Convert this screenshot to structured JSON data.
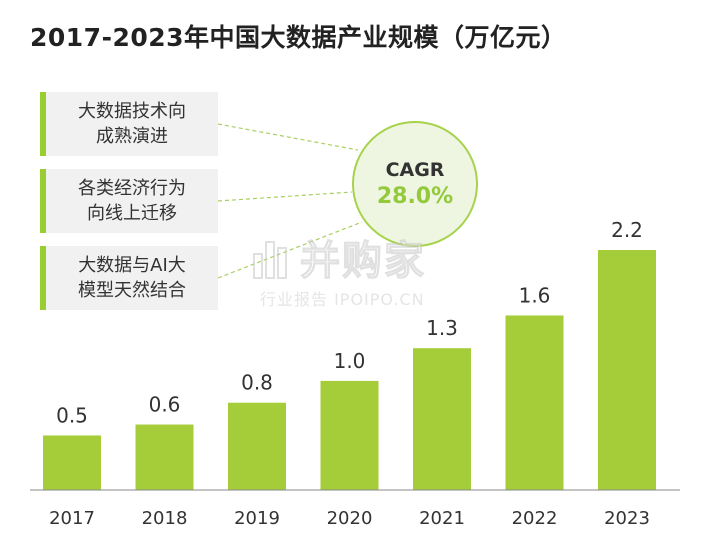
{
  "title": "2017-2023年中国大数据产业规模（万亿元）",
  "callouts": [
    "大数据技术向\n成熟演进",
    "各类经济行为\n向线上迁移",
    "大数据与AI大\n模型天然结合"
  ],
  "cagr": {
    "label": "CAGR",
    "value": "28.0%"
  },
  "watermark": {
    "main": "并购家",
    "sub": "行业报告 IPOIPO.CN"
  },
  "colors": {
    "bar": "#a5cd39",
    "accent": "#93c93b",
    "callout_border": "#9acd32"
  },
  "chart_data": {
    "type": "bar",
    "title": "2017-2023年中国大数据产业规模（万亿元）",
    "categories": [
      "2017",
      "2018",
      "2019",
      "2020",
      "2021",
      "2022",
      "2023"
    ],
    "values": [
      0.5,
      0.6,
      0.8,
      1.0,
      1.3,
      1.6,
      2.2
    ],
    "value_labels": [
      "0.5",
      "0.6",
      "0.8",
      "1.0",
      "1.3",
      "1.6",
      "2.2"
    ],
    "ylim": [
      0,
      2.2
    ],
    "grid": false,
    "legend": "none"
  }
}
